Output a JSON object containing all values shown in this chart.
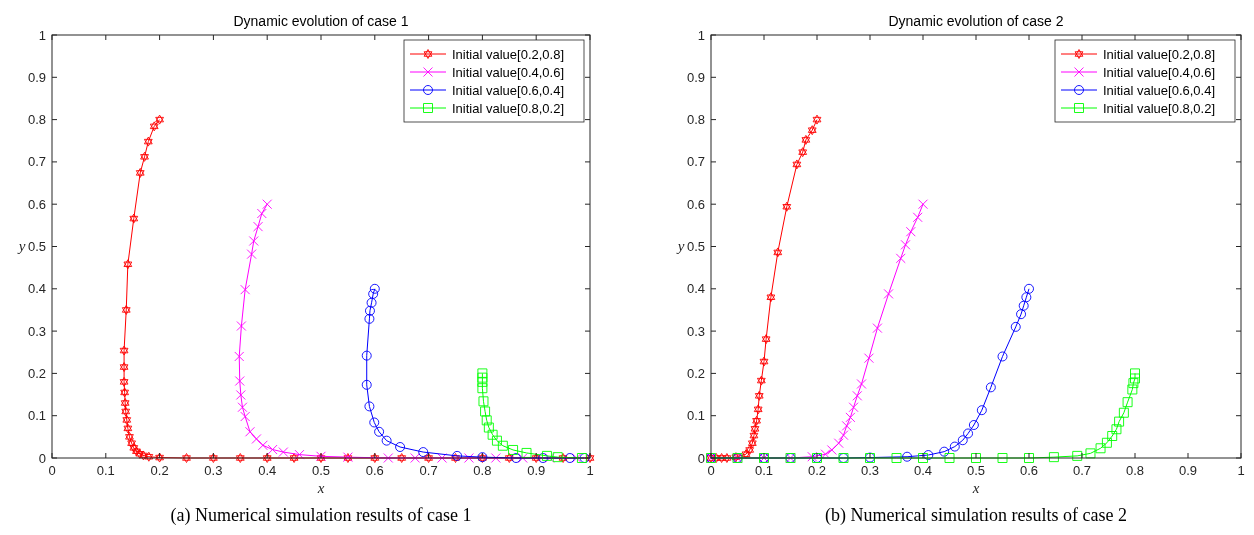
{
  "chart_data": [
    {
      "type": "line",
      "title": "Dynamic evolution of case 1",
      "xlabel": "x",
      "ylabel": "y",
      "xlim": [
        0,
        1
      ],
      "ylim": [
        0,
        1
      ],
      "xticks": [
        0,
        0.1,
        0.2,
        0.3,
        0.4,
        0.5,
        0.6,
        0.7,
        0.8,
        0.9,
        1
      ],
      "yticks": [
        0,
        0.1,
        0.2,
        0.3,
        0.4,
        0.5,
        0.6,
        0.7,
        0.8,
        0.9,
        1
      ],
      "grid": false,
      "legend": "top right",
      "annotations": [
        "(a) Numerical simulation results of case 1"
      ],
      "series": [
        {
          "name": "Initial value[0.2,0.8]",
          "color": "#ff0000",
          "marker": "star",
          "x": [
            0.2,
            0.19,
            0.179,
            0.172,
            0.164,
            0.152,
            0.141,
            0.138,
            0.134,
            0.134,
            0.134,
            0.135,
            0.136,
            0.137,
            0.139,
            0.141,
            0.144,
            0.148,
            0.152,
            0.157,
            0.163,
            0.17,
            0.18,
            0.2,
            0.25,
            0.3,
            0.35,
            0.4,
            0.45,
            0.5,
            0.55,
            0.6,
            0.65,
            0.7,
            0.75,
            0.8,
            0.85,
            0.9,
            0.95,
            1
          ],
          "values": [
            0.8,
            0.784,
            0.748,
            0.712,
            0.674,
            0.566,
            0.458,
            0.35,
            0.254,
            0.215,
            0.18,
            0.155,
            0.13,
            0.11,
            0.09,
            0.07,
            0.05,
            0.035,
            0.024,
            0.016,
            0.01,
            0.006,
            0.003,
            0.001,
            0,
            0,
            0,
            0,
            0,
            0,
            0,
            0,
            0,
            0,
            0,
            0,
            0,
            0,
            0,
            0
          ]
        },
        {
          "name": "Initial value[0.4,0.6]",
          "color": "#ff00ff",
          "marker": "cross",
          "x": [
            0.4,
            0.39,
            0.383,
            0.375,
            0.371,
            0.359,
            0.352,
            0.348,
            0.349,
            0.351,
            0.354,
            0.359,
            0.368,
            0.38,
            0.392,
            0.41,
            0.43,
            0.46,
            0.5,
            0.55,
            0.625,
            0.675,
            0.725,
            0.775,
            0.825,
            0.875,
            0.925,
            0.975
          ],
          "values": [
            0.6,
            0.578,
            0.547,
            0.513,
            0.482,
            0.398,
            0.312,
            0.24,
            0.182,
            0.149,
            0.12,
            0.098,
            0.062,
            0.045,
            0.03,
            0.02,
            0.014,
            0.008,
            0.004,
            0.002,
            0,
            0,
            0,
            0,
            0,
            0,
            0,
            0
          ]
        },
        {
          "name": "Initial value[0.6,0.4]",
          "color": "#0000ff",
          "marker": "circle",
          "x": [
            0.6,
            0.597,
            0.594,
            0.591,
            0.59,
            0.585,
            0.585,
            0.59,
            0.599,
            0.608,
            0.622,
            0.647,
            0.69,
            0.753,
            0.8,
            0.8625,
            0.9125,
            0.9625,
            0.99
          ],
          "values": [
            0.4,
            0.388,
            0.367,
            0.348,
            0.329,
            0.242,
            0.173,
            0.122,
            0.084,
            0.062,
            0.041,
            0.026,
            0.014,
            0.005,
            0.002,
            0,
            0,
            0,
            0
          ]
        },
        {
          "name": "Initial value[0.8,0.2]",
          "color": "#00ff00",
          "marker": "square",
          "x": [
            0.8,
            0.8,
            0.8,
            0.8,
            0.802,
            0.805,
            0.808,
            0.812,
            0.819,
            0.827,
            0.838,
            0.857,
            0.882,
            0.92,
            0.94,
            0.985
          ],
          "values": [
            0.2,
            0.19,
            0.18,
            0.165,
            0.134,
            0.11,
            0.089,
            0.072,
            0.055,
            0.041,
            0.029,
            0.019,
            0.012,
            0.005,
            0.002,
            0
          ]
        }
      ]
    },
    {
      "type": "line",
      "title": "Dynamic evolution of case 2",
      "xlabel": "x",
      "ylabel": "y",
      "xlim": [
        0,
        1
      ],
      "ylim": [
        0,
        1
      ],
      "xticks": [
        0,
        0.1,
        0.2,
        0.3,
        0.4,
        0.5,
        0.6,
        0.7,
        0.8,
        0.9,
        1
      ],
      "yticks": [
        0,
        0.1,
        0.2,
        0.3,
        0.4,
        0.5,
        0.6,
        0.7,
        0.8,
        0.9,
        1
      ],
      "grid": false,
      "legend": "top right",
      "annotations": [
        "(b) Numerical simulation results of case 2"
      ],
      "series": [
        {
          "name": "Initial value[0.2,0.8]",
          "color": "#ff0000",
          "marker": "star",
          "x": [
            0.2,
            0.191,
            0.179,
            0.173,
            0.162,
            0.143,
            0.126,
            0.113,
            0.104,
            0.1,
            0.095,
            0.091,
            0.089,
            0.086,
            0.083,
            0.081,
            0.078,
            0.073,
            0.066,
            0.047,
            0.03,
            0.02,
            0.01,
            0
          ],
          "values": [
            0.8,
            0.775,
            0.752,
            0.723,
            0.694,
            0.594,
            0.486,
            0.38,
            0.281,
            0.228,
            0.183,
            0.147,
            0.115,
            0.088,
            0.069,
            0.053,
            0.035,
            0.019,
            0.009,
            0.002,
            0,
            0,
            0,
            0
          ]
        },
        {
          "name": "Initial value[0.4,0.6]",
          "color": "#ff00ff",
          "marker": "cross",
          "x": [
            0.4,
            0.39,
            0.377,
            0.367,
            0.358,
            0.335,
            0.314,
            0.298,
            0.284,
            0.276,
            0.269,
            0.263,
            0.256,
            0.25,
            0.241,
            0.228,
            0.216,
            0.191,
            0.15,
            0.1,
            0.05,
            0
          ],
          "values": [
            0.6,
            0.569,
            0.535,
            0.504,
            0.472,
            0.388,
            0.307,
            0.236,
            0.175,
            0.147,
            0.12,
            0.096,
            0.076,
            0.054,
            0.035,
            0.019,
            0.009,
            0.003,
            0,
            0,
            0,
            0
          ]
        },
        {
          "name": "Initial value[0.6,0.4]",
          "color": "#0000ff",
          "marker": "circle",
          "x": [
            0.6,
            0.595,
            0.59,
            0.585,
            0.575,
            0.55,
            0.528,
            0.511,
            0.496,
            0.485,
            0.475,
            0.46,
            0.44,
            0.41,
            0.37,
            0.3,
            0.25,
            0.2,
            0.15,
            0.1,
            0.05,
            0
          ],
          "values": [
            0.4,
            0.38,
            0.36,
            0.34,
            0.31,
            0.24,
            0.167,
            0.113,
            0.078,
            0.058,
            0.042,
            0.027,
            0.015,
            0.007,
            0.003,
            0.001,
            0,
            0,
            0,
            0,
            0,
            0
          ]
        },
        {
          "name": "Initial value[0.8,0.2]",
          "color": "#00ff00",
          "marker": "square",
          "x": [
            0.8,
            0.8,
            0.797,
            0.795,
            0.786,
            0.779,
            0.77,
            0.765,
            0.757,
            0.747,
            0.735,
            0.716,
            0.691,
            0.647,
            0.6,
            0.55,
            0.5,
            0.45,
            0.4,
            0.35,
            0.3,
            0.25,
            0.2,
            0.15,
            0.1,
            0.05,
            0
          ],
          "values": [
            0.2,
            0.188,
            0.177,
            0.162,
            0.132,
            0.107,
            0.086,
            0.068,
            0.052,
            0.036,
            0.023,
            0.011,
            0.005,
            0.002,
            0,
            0,
            0,
            0,
            0,
            0,
            0,
            0,
            0,
            0,
            0,
            0,
            0
          ]
        }
      ]
    }
  ]
}
